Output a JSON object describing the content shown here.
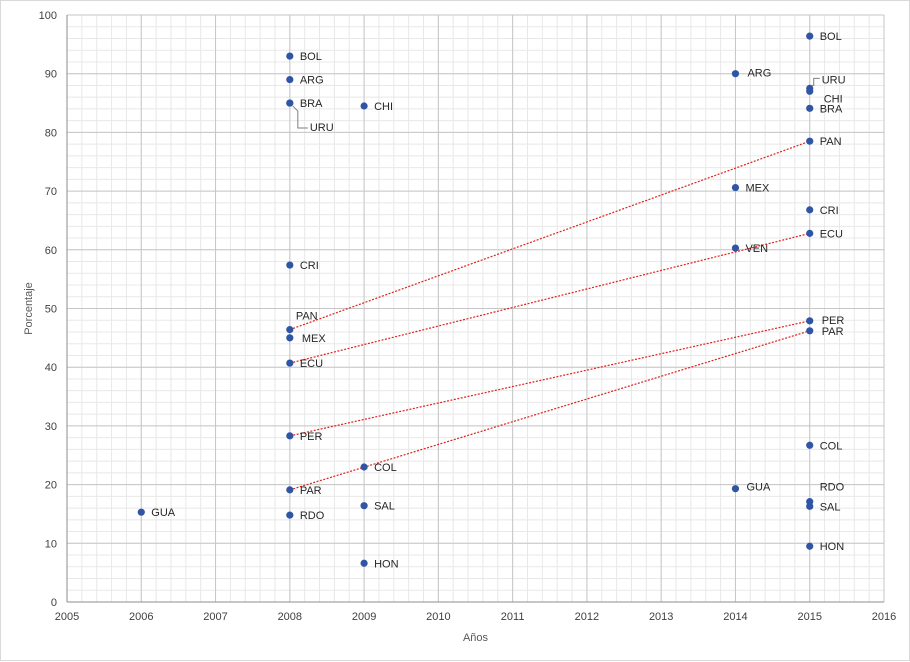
{
  "chart_data": {
    "type": "scatter",
    "xlabel": "Años",
    "ylabel": "Porcentaje",
    "xlim": [
      2005,
      2016
    ],
    "ylim": [
      0,
      100
    ],
    "x_ticks": [
      2005,
      2006,
      2007,
      2008,
      2009,
      2010,
      2011,
      2012,
      2013,
      2014,
      2015,
      2016
    ],
    "y_ticks": [
      0,
      10,
      20,
      30,
      40,
      50,
      60,
      70,
      80,
      90,
      100
    ],
    "grid": true,
    "minor_grid": true,
    "marker_color": "#2f55a4",
    "trend_color": "#e0211b",
    "points": [
      {
        "label": "GUA",
        "x": 2006,
        "y": 15.3
      },
      {
        "label": "BOL",
        "x": 2008,
        "y": 93.0
      },
      {
        "label": "ARG",
        "x": 2008,
        "y": 89.0
      },
      {
        "label": "BRA",
        "x": 2008,
        "y": 85.0
      },
      {
        "label": "URU",
        "x": 2008,
        "y": 85.0
      },
      {
        "label": "CRI",
        "x": 2008,
        "y": 57.4
      },
      {
        "label": "PAN",
        "x": 2008,
        "y": 46.4
      },
      {
        "label": "MEX",
        "x": 2008,
        "y": 45.0
      },
      {
        "label": "ECU",
        "x": 2008,
        "y": 40.7
      },
      {
        "label": "PER",
        "x": 2008,
        "y": 28.3
      },
      {
        "label": "PAR",
        "x": 2008,
        "y": 19.1
      },
      {
        "label": "RDO",
        "x": 2008,
        "y": 14.8
      },
      {
        "label": "CHI",
        "x": 2009,
        "y": 84.5
      },
      {
        "label": "COL",
        "x": 2009,
        "y": 23.0
      },
      {
        "label": "SAL",
        "x": 2009,
        "y": 16.4
      },
      {
        "label": "HON",
        "x": 2009,
        "y": 6.6
      },
      {
        "label": "ARG",
        "x": 2014,
        "y": 90.0
      },
      {
        "label": "MEX",
        "x": 2014,
        "y": 70.6
      },
      {
        "label": "VEN",
        "x": 2014,
        "y": 60.3
      },
      {
        "label": "GUA",
        "x": 2014,
        "y": 19.3
      },
      {
        "label": "BOL",
        "x": 2015,
        "y": 96.4
      },
      {
        "label": "URU",
        "x": 2015,
        "y": 87.5
      },
      {
        "label": "CHI",
        "x": 2015,
        "y": 87.0
      },
      {
        "label": "BRA",
        "x": 2015,
        "y": 84.1
      },
      {
        "label": "PAN",
        "x": 2015,
        "y": 78.5
      },
      {
        "label": "CRI",
        "x": 2015,
        "y": 66.8
      },
      {
        "label": "ECU",
        "x": 2015,
        "y": 62.8
      },
      {
        "label": "PER",
        "x": 2015,
        "y": 47.9
      },
      {
        "label": "PAR",
        "x": 2015,
        "y": 46.2
      },
      {
        "label": "COL",
        "x": 2015,
        "y": 26.7
      },
      {
        "label": "RDO",
        "x": 2015,
        "y": 17.1
      },
      {
        "label": "SAL",
        "x": 2015,
        "y": 16.3
      },
      {
        "label": "HON",
        "x": 2015,
        "y": 9.5
      }
    ],
    "trend_lines": [
      {
        "from": [
          2008,
          46.4
        ],
        "to": [
          2015,
          78.5
        ]
      },
      {
        "from": [
          2008,
          40.7
        ],
        "to": [
          2015,
          62.8
        ]
      },
      {
        "from": [
          2008,
          28.3
        ],
        "to": [
          2015,
          47.9
        ]
      },
      {
        "from": [
          2008,
          19.1
        ],
        "to": [
          2015,
          46.2
        ]
      }
    ]
  }
}
